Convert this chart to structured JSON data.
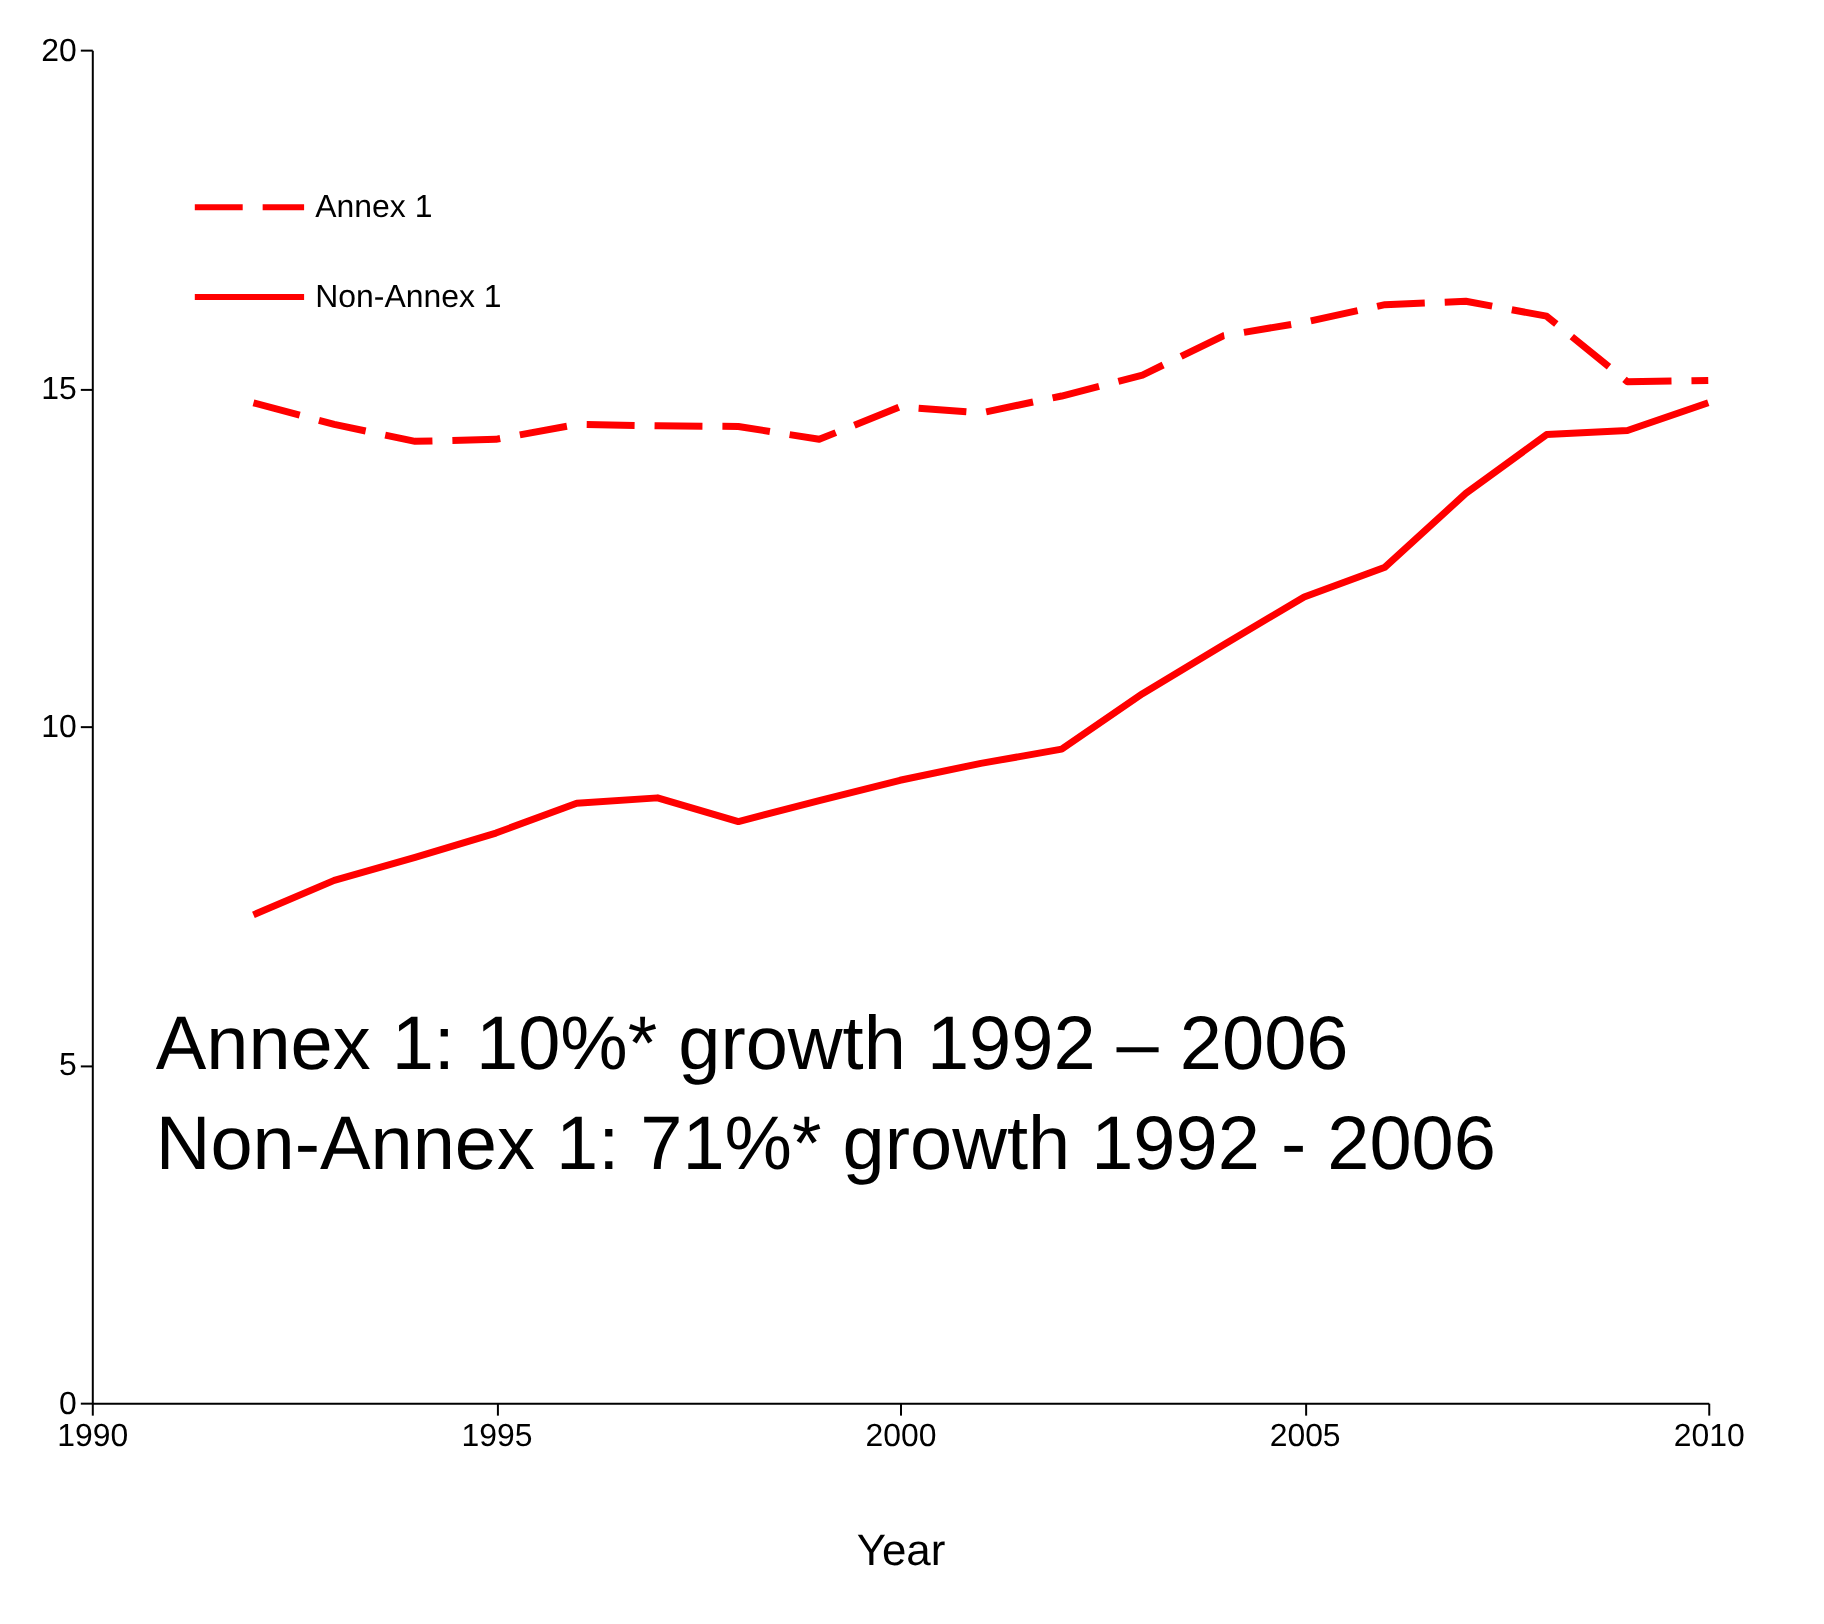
{
  "chart_data": {
    "type": "line",
    "xlabel": "Year",
    "x": [
      1992,
      1993,
      1994,
      1995,
      1996,
      1997,
      1998,
      1999,
      2000,
      2001,
      2002,
      2003,
      2004,
      2005,
      2006,
      2007,
      2008,
      2009,
      2010
    ],
    "series": [
      {
        "name": "Annex 1",
        "color": "#ff0000",
        "line_style": "dashed",
        "values": [
          14.78,
          14.46,
          14.21,
          14.24,
          14.46,
          14.44,
          14.43,
          14.24,
          14.72,
          14.63,
          14.88,
          15.19,
          15.77,
          15.97,
          16.23,
          16.28,
          16.06,
          15.09,
          15.11
        ]
      },
      {
        "name": "Non-Annex 1",
        "color": "#ff0000",
        "line_style": "solid",
        "values": [
          7.21,
          7.72,
          8.06,
          8.42,
          8.86,
          8.94,
          8.59,
          8.9,
          9.2,
          9.45,
          9.66,
          10.48,
          11.2,
          11.91,
          12.35,
          13.44,
          14.31,
          14.37,
          14.78
        ]
      }
    ],
    "xlim": [
      1990,
      2010
    ],
    "xticks": [
      1990,
      1995,
      2000,
      2005,
      2010
    ],
    "ylim": [
      0,
      20
    ],
    "yticks": [
      0,
      5,
      10,
      15,
      20
    ],
    "grid": false,
    "legend": "top left",
    "marker": "none",
    "annotations": [
      "Annex 1: 10%* growth 1992 – 2006",
      "Non-Annex 1: 71%* growth 1992 - 2006"
    ]
  }
}
